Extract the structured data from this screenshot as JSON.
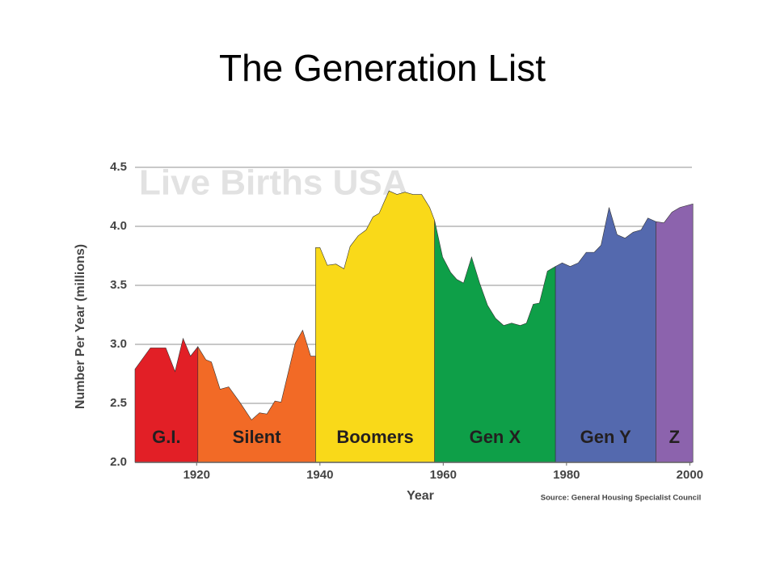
{
  "slide": {
    "title": "The Generation List"
  },
  "chart_data": {
    "type": "area",
    "title": "Live Births USA",
    "x_label": "Year",
    "y_label": "Number Per Year (millions)",
    "source": "Source: General Housing Specialist Council",
    "xlim": [
      1910,
      2001
    ],
    "xticks": [
      1920,
      1940,
      1960,
      1980,
      2000
    ],
    "ylim": [
      2.0,
      4.5
    ],
    "yticks": [
      {
        "value": 2,
        "label": "2.0"
      },
      2.5,
      {
        "value": 3,
        "label": "3.0"
      },
      3.5,
      {
        "value": 4,
        "label": "4.0"
      },
      4.5
    ],
    "grid": true,
    "series": [
      {
        "name": "G.I.",
        "color": "#e21f26",
        "x": [
          1910,
          1912.5,
          1915,
          1916.5,
          1917.8,
          1919,
          1920.2
        ],
        "values": [
          2.79,
          2.97,
          2.97,
          2.77,
          3.05,
          2.9,
          2.98
        ]
      },
      {
        "name": "Silent",
        "color": "#f26a26",
        "x": [
          1920.2,
          1921.5,
          1922.4,
          1923.8,
          1925.2,
          1927,
          1928.9,
          1930.2,
          1931.4,
          1932.7,
          1933.7,
          1936,
          1937.2,
          1938.5,
          1939.3
        ],
        "values": [
          2.98,
          2.87,
          2.85,
          2.62,
          2.64,
          2.51,
          2.36,
          2.42,
          2.41,
          2.52,
          2.51,
          3.01,
          3.12,
          2.9,
          2.9
        ]
      },
      {
        "name": "Boomers",
        "color": "#f9d919",
        "x": [
          1939.3,
          1940,
          1941.2,
          1942.6,
          1943.9,
          1944.9,
          1946.2,
          1947.5,
          1948.6,
          1949.6,
          1951.2,
          1952.5,
          1953.8,
          1955.1,
          1956.5,
          1957.8,
          1958.6
        ],
        "values": [
          3.82,
          3.82,
          3.67,
          3.68,
          3.64,
          3.83,
          3.92,
          3.97,
          4.08,
          4.11,
          4.3,
          4.27,
          4.29,
          4.27,
          4.27,
          4.16,
          4.05
        ]
      },
      {
        "name": "Gen X",
        "color": "#0e9f48",
        "x": [
          1958.6,
          1959.9,
          1961.2,
          1962.2,
          1963.3,
          1964.6,
          1965.9,
          1967.2,
          1968.5,
          1969.8,
          1971.1,
          1972.5,
          1973.5,
          1974.6,
          1975.6,
          1976.9,
          1978.2
        ],
        "values": [
          4.05,
          3.74,
          3.61,
          3.55,
          3.52,
          3.74,
          3.52,
          3.33,
          3.22,
          3.16,
          3.18,
          3.16,
          3.18,
          3.34,
          3.35,
          3.62,
          3.66
        ]
      },
      {
        "name": "Gen Y",
        "color": "#5469ae",
        "x": [
          1978.2,
          1979.3,
          1980.6,
          1981.9,
          1983.2,
          1984.5,
          1985.6,
          1986.9,
          1988.2,
          1989.5,
          1990.8,
          1992.1,
          1993.2,
          1994.5
        ],
        "values": [
          3.66,
          3.69,
          3.66,
          3.69,
          3.78,
          3.78,
          3.84,
          4.16,
          3.93,
          3.9,
          3.95,
          3.97,
          4.07,
          4.04
        ]
      },
      {
        "name": "Z",
        "color": "#8c63ad",
        "x": [
          1994.5,
          1995.8,
          1997.1,
          1998.4,
          2000.5
        ],
        "values": [
          4.04,
          4.03,
          4.12,
          4.16,
          4.19
        ]
      }
    ]
  }
}
